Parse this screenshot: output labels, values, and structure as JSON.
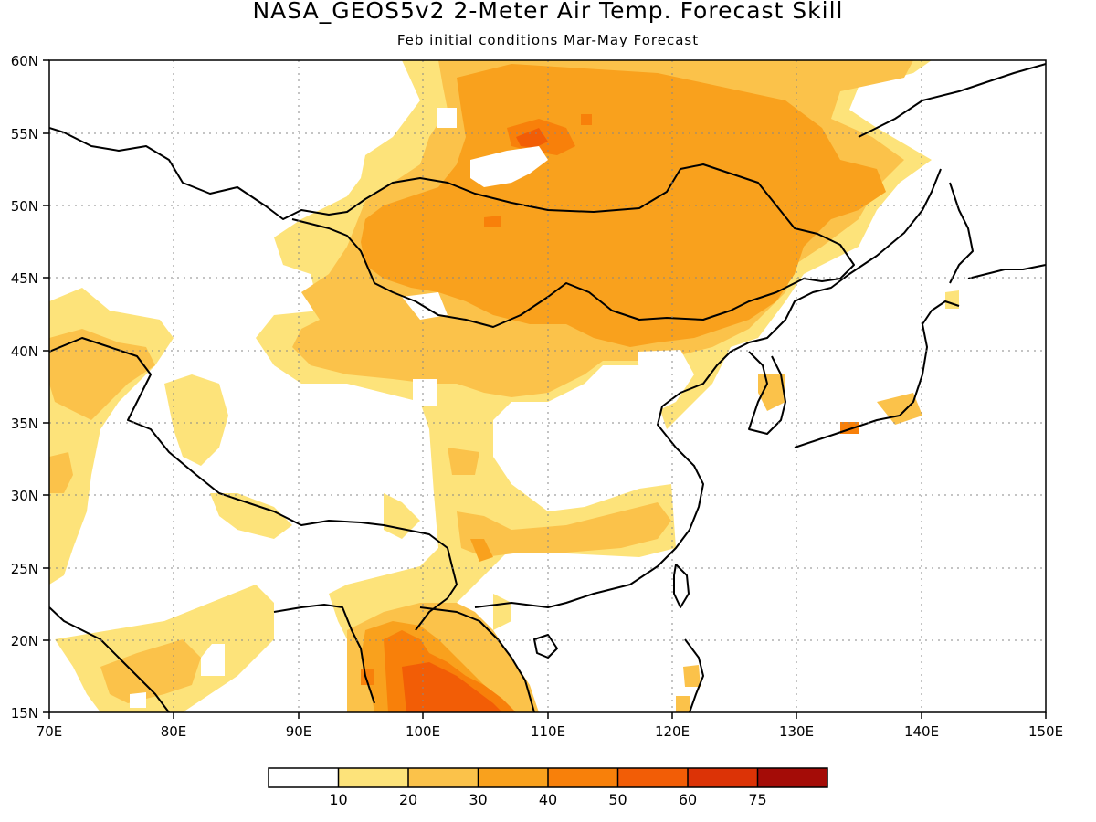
{
  "title": "NASA_GEOS5v2 2-Meter Air Temp. Forecast Skill",
  "subtitle": "Feb initial conditions  Mar-May Forecast",
  "map": {
    "lon_range": [
      70,
      150
    ],
    "lat_range": [
      15,
      60
    ],
    "lon_ticks": [
      "70E",
      "80E",
      "90E",
      "100E",
      "110E",
      "120E",
      "130E",
      "140E",
      "150E"
    ],
    "lat_ticks": [
      "15N",
      "20N",
      "25N",
      "30N",
      "35N",
      "40N",
      "45N",
      "50N",
      "55N",
      "60N"
    ],
    "grid": "dotted"
  },
  "colorbar": {
    "labels": [
      "10",
      "20",
      "30",
      "40",
      "50",
      "60",
      "75"
    ],
    "colors": [
      "#ffffff",
      "#fde37a",
      "#fbc24a",
      "#f9a11d",
      "#f8800a",
      "#f25d06",
      "#dc3306",
      "#a40c07"
    ]
  }
}
